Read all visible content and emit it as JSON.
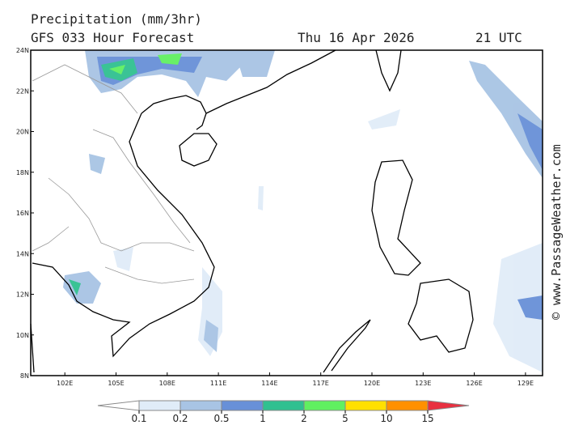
{
  "header": {
    "title": "Precipitation (mm/3hr)",
    "subtitle": "GFS 033 Hour Forecast",
    "date": "Thu 16 Apr 2026",
    "time": "21 UTC"
  },
  "credit": "© www.PassageWeather.com",
  "map": {
    "xlim": [
      100,
      130
    ],
    "ylim": [
      8,
      24
    ],
    "xticks": [
      {
        "value": 102,
        "label": "102E"
      },
      {
        "value": 105,
        "label": "105E"
      },
      {
        "value": 108,
        "label": "108E"
      },
      {
        "value": 111,
        "label": "111E"
      },
      {
        "value": 114,
        "label": "114E"
      },
      {
        "value": 117,
        "label": "117E"
      },
      {
        "value": 120,
        "label": "120E"
      },
      {
        "value": 123,
        "label": "123E"
      },
      {
        "value": 126,
        "label": "126E"
      },
      {
        "value": 129,
        "label": "129E"
      }
    ],
    "yticks": [
      {
        "value": 8,
        "label": "8N"
      },
      {
        "value": 10,
        "label": "10N"
      },
      {
        "value": 12,
        "label": "12N"
      },
      {
        "value": 14,
        "label": "14N"
      },
      {
        "value": 16,
        "label": "16N"
      },
      {
        "value": 18,
        "label": "18N"
      },
      {
        "value": 20,
        "label": "20N"
      },
      {
        "value": 22,
        "label": "22N"
      },
      {
        "value": 24,
        "label": "24N"
      }
    ]
  },
  "colorbar": {
    "levels": [
      0.1,
      0.2,
      0.5,
      1,
      2,
      5,
      10,
      15
    ],
    "colors": [
      "#ffffff",
      "#e0ecf8",
      "#a8c4e4",
      "#6890d8",
      "#30c090",
      "#60f060",
      "#ffe000",
      "#ff9000",
      "#e83040"
    ]
  }
}
